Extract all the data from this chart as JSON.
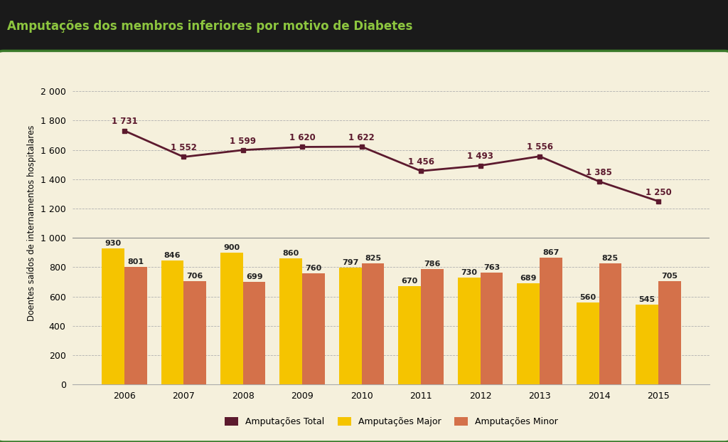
{
  "title": "Amputações dos membros inferiores por motivo de Diabetes",
  "ylabel": "Doentes saídos de internamentos hospitalares",
  "years": [
    2006,
    2007,
    2008,
    2009,
    2010,
    2011,
    2012,
    2013,
    2014,
    2015
  ],
  "total": [
    1731,
    1552,
    1599,
    1620,
    1622,
    1456,
    1493,
    1556,
    1385,
    1250
  ],
  "major": [
    930,
    846,
    900,
    860,
    797,
    670,
    730,
    689,
    560,
    545
  ],
  "minor": [
    801,
    706,
    699,
    760,
    825,
    786,
    763,
    867,
    825,
    705
  ],
  "color_total": "#5c1a2e",
  "color_major": "#f5c400",
  "color_minor": "#d4714a",
  "color_background_outer": "#1a1a1a",
  "color_background_inner": "#f5f0dc",
  "color_title_bg": "#2d2d2d",
  "color_title_text": "#8dc63f",
  "color_border_inner": "#3a7a2a",
  "color_grid": "#b0b0b0",
  "bar_width": 0.38,
  "legend_labels": [
    "Amputações Total",
    "Amputações Major",
    "Amputações Minor"
  ],
  "title_fontsize": 12,
  "label_fontsize": 8.5,
  "tick_fontsize": 9,
  "legend_fontsize": 9,
  "annotation_fontsize": 8
}
